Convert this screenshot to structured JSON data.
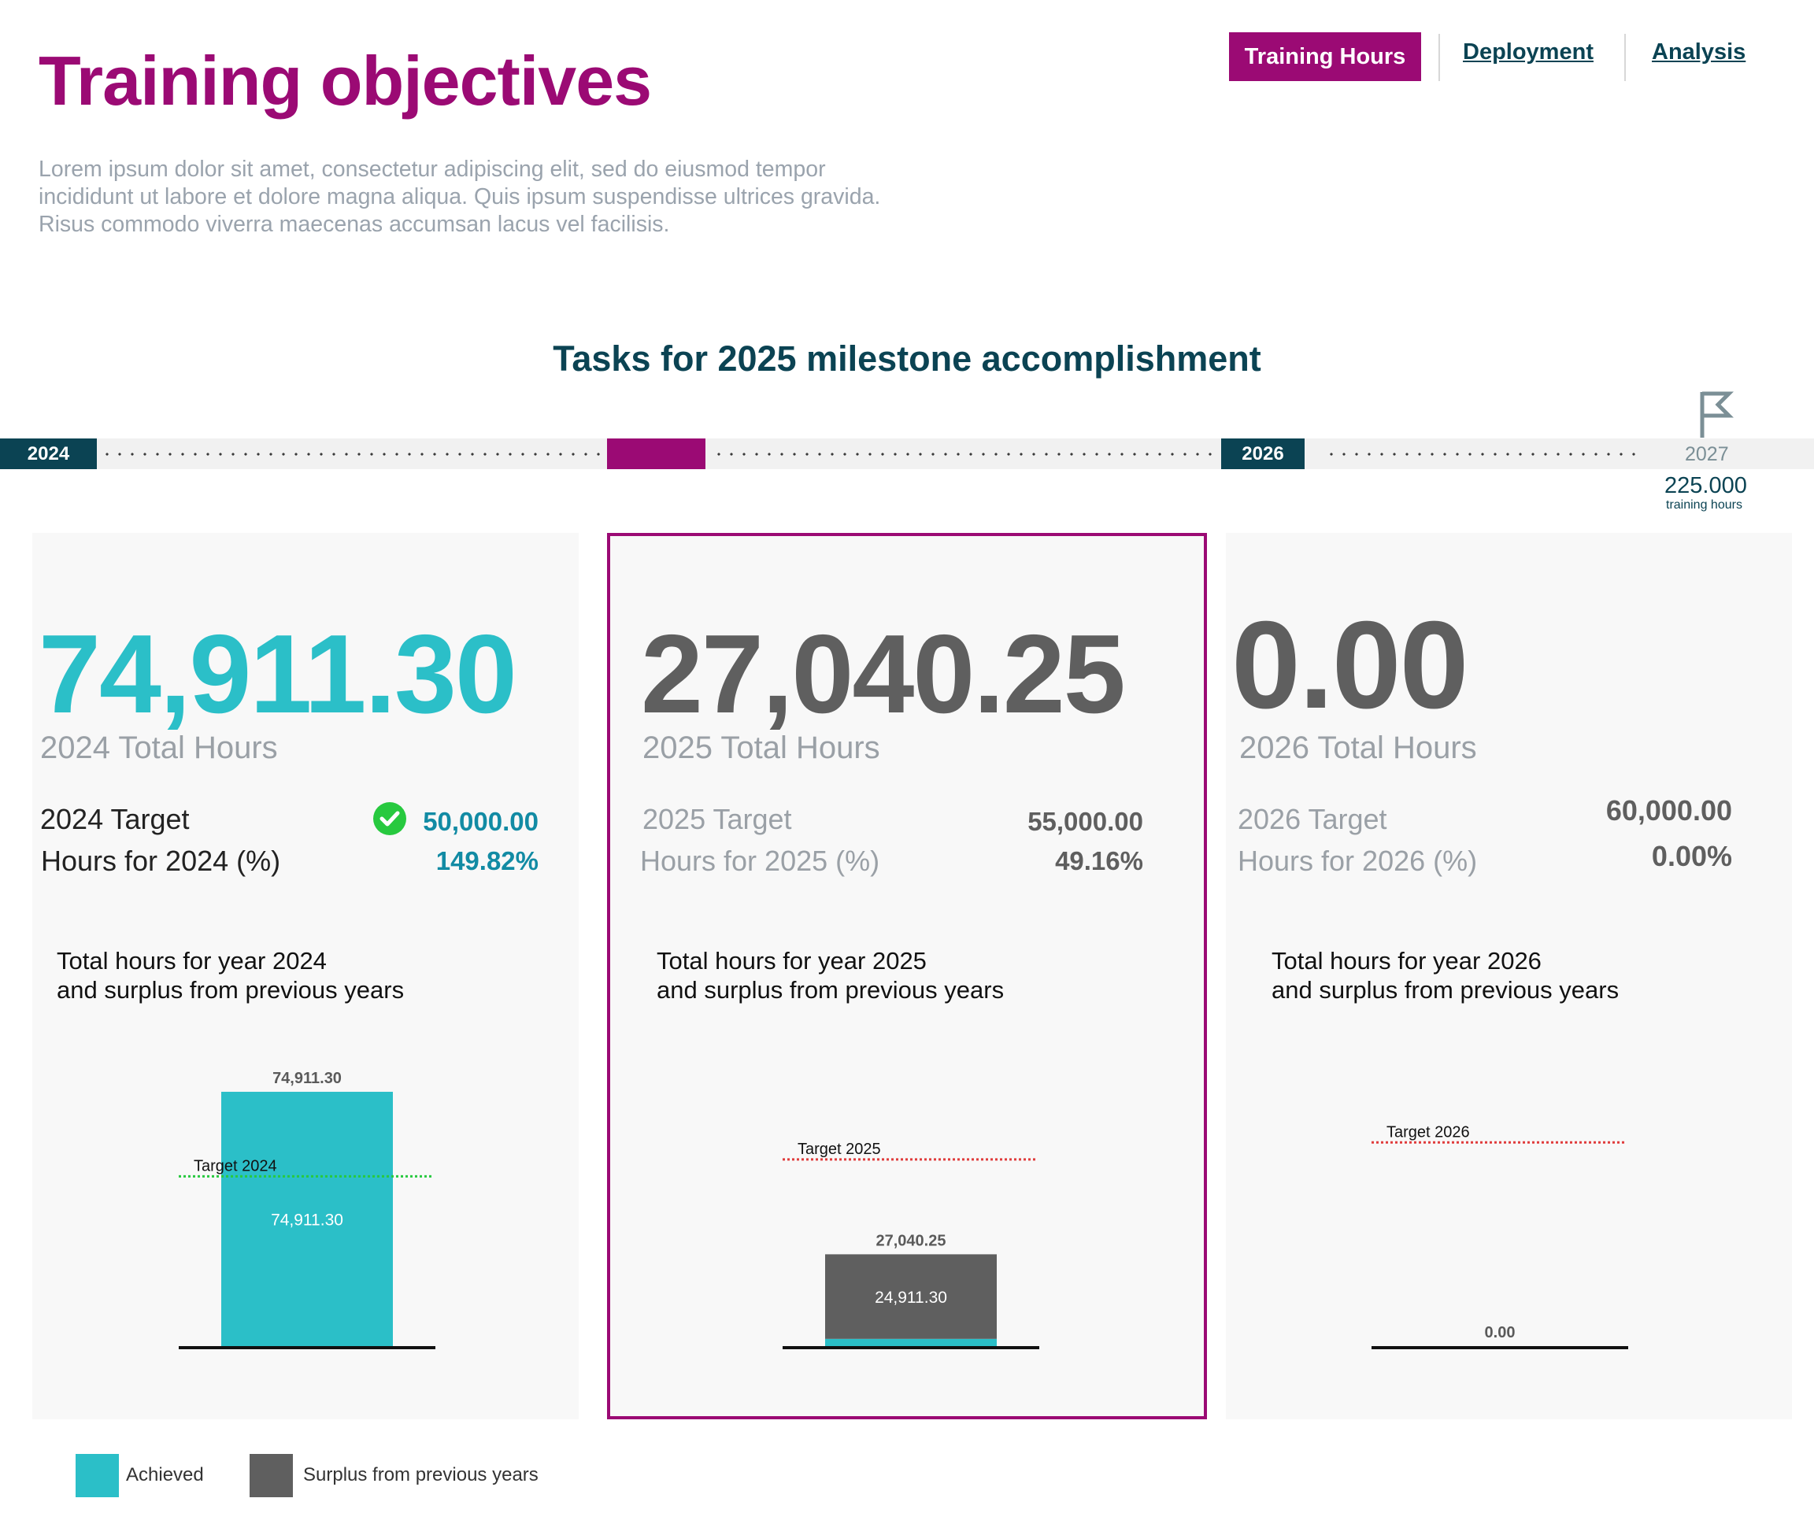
{
  "header": {
    "title": "Training objectives",
    "description_lines": [
      "Lorem ipsum dolor sit amet, consectetur adipiscing elit, sed do eiusmod tempor",
      "incididunt ut labore et dolore magna aliqua. Quis ipsum suspendisse ultrices gravida.",
      "Risus commodo viverra maecenas accumsan lacus vel facilisis."
    ]
  },
  "nav": {
    "tabs": [
      {
        "label": "Training Hours",
        "active": true
      },
      {
        "label": "Deployment",
        "active": false
      },
      {
        "label": "Analysis",
        "active": false
      }
    ]
  },
  "timeline": {
    "title": "Tasks for 2025 milestone accomplishment",
    "years": [
      "2024",
      "",
      "2026"
    ],
    "end_year": "2027",
    "goal_value": "225.000",
    "goal_label": "training hours",
    "flag_icon": "flag-icon"
  },
  "colors": {
    "brand": "#9b0a74",
    "navy": "#0b4353",
    "achieved": "#2bbfc8",
    "surplus": "#5f5f5f",
    "check": "#27c93f",
    "target_met": "#27c93f",
    "target_missed": "#e03c3c"
  },
  "cards": [
    {
      "big_value": "74,911.30",
      "total_label": "2024 Total Hours",
      "target_label": "2024 Target",
      "target_value": "50,000.00",
      "pct_label": "Hours for 2024 (%)",
      "pct_value": "149.82%",
      "chart_title_1": "Total hours for year 2024",
      "chart_title_2": "and surplus from previous years",
      "check_icon": "check-circle-icon"
    },
    {
      "big_value": "27,040.25",
      "total_label": "2025 Total Hours",
      "target_label": "2025 Target",
      "target_value": "55,000.00",
      "pct_label": "Hours for 2025 (%)",
      "pct_value": "49.16%",
      "chart_title_1": "Total hours for year 2025",
      "chart_title_2": "and surplus from previous years"
    },
    {
      "big_value": "0.00",
      "total_label": "2026 Total Hours",
      "target_label": "2026 Target",
      "target_value": "60,000.00",
      "pct_label": "Hours for 2026 (%)",
      "pct_value": "0.00%",
      "chart_title_1": "Total hours for year 2026",
      "chart_title_2": "and surplus from previous years"
    }
  ],
  "chart_data": [
    {
      "type": "bar",
      "stacked": true,
      "categories": [
        "2024"
      ],
      "series": [
        {
          "name": "Achieved",
          "values": [
            74911.3
          ],
          "label": "74,911.30"
        },
        {
          "name": "Surplus from previous years",
          "values": [
            0
          ],
          "label": ""
        }
      ],
      "total_label": "74,911.30",
      "target": {
        "label": "Target 2024",
        "value": 50000,
        "met": true
      },
      "ylim": [
        0,
        80000
      ]
    },
    {
      "type": "bar",
      "stacked": true,
      "categories": [
        "2025"
      ],
      "series": [
        {
          "name": "Achieved",
          "values": [
            2128.95
          ],
          "label": ""
        },
        {
          "name": "Surplus from previous years",
          "values": [
            24911.3
          ],
          "label": "24,911.30"
        }
      ],
      "total_label": "27,040.25",
      "target": {
        "label": "Target 2025",
        "value": 55000,
        "met": false
      },
      "ylim": [
        0,
        80000
      ]
    },
    {
      "type": "bar",
      "stacked": true,
      "categories": [
        "2026"
      ],
      "series": [
        {
          "name": "Achieved",
          "values": [
            0
          ],
          "label": ""
        },
        {
          "name": "Surplus from previous years",
          "values": [
            0
          ],
          "label": ""
        }
      ],
      "total_label": "0.00",
      "target": {
        "label": "Target 2026",
        "value": 60000,
        "met": false
      },
      "ylim": [
        0,
        80000
      ]
    }
  ],
  "legend": [
    {
      "label": "Achieved",
      "color": "#2bbfc8"
    },
    {
      "label": "Surplus from previous years",
      "color": "#5f5f5f"
    }
  ]
}
